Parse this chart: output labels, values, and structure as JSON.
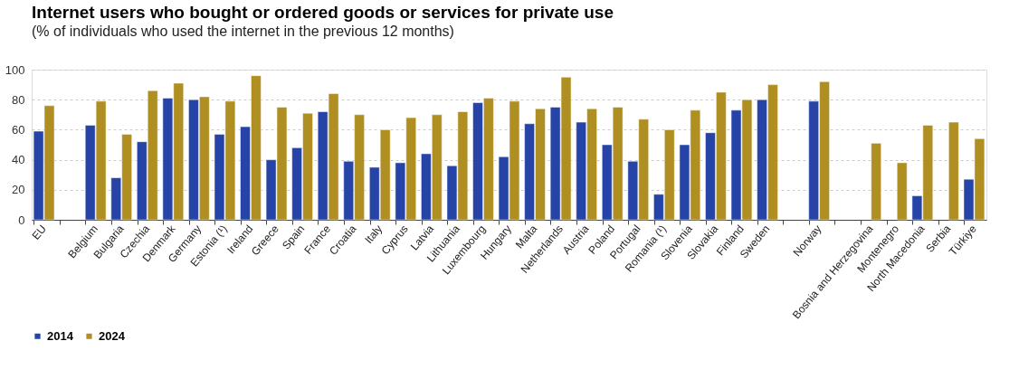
{
  "chart_data": {
    "type": "bar",
    "title": "Internet users who bought or ordered goods or services for private use",
    "subtitle": "(% of individuals who used the internet in the previous 12 months)",
    "categories": [
      "EU",
      null,
      "Belgium",
      "Bulgaria",
      "Czechia",
      "Denmark",
      "Germany",
      "Estonia (¹)",
      "Ireland",
      "Greece",
      "Spain",
      "France",
      "Croatia",
      "Italy",
      "Cyprus",
      "Latvia",
      "Lithuania",
      "Luxembourg",
      "Hungary",
      "Malta",
      "Netherlands",
      "Austria",
      "Poland",
      "Portugal",
      "Romania (¹)",
      "Slovenia",
      "Slovakia",
      "Finland",
      "Sweden",
      null,
      "Norway",
      null,
      "Bosnia and Herzegovina",
      "Montenegro",
      "North Macedonia",
      "Serbia",
      "Türkiye"
    ],
    "series": [
      {
        "name": "2014",
        "color": "#2644a8",
        "values": [
          59,
          null,
          63,
          28,
          52,
          81,
          80,
          57,
          62,
          40,
          48,
          72,
          39,
          35,
          38,
          44,
          36,
          78,
          42,
          64,
          75,
          65,
          50,
          39,
          17,
          50,
          58,
          73,
          80,
          null,
          79,
          null,
          null,
          null,
          16,
          null,
          27
        ]
      },
      {
        "name": "2024",
        "color": "#b08f22",
        "values": [
          76,
          null,
          79,
          57,
          86,
          91,
          82,
          79,
          96,
          75,
          71,
          84,
          70,
          60,
          68,
          70,
          72,
          81,
          79,
          74,
          95,
          74,
          75,
          67,
          60,
          73,
          85,
          80,
          90,
          null,
          92,
          null,
          51,
          38,
          63,
          65,
          54
        ]
      }
    ],
    "ylim": [
      0,
      100
    ],
    "yticks": [
      0,
      20,
      40,
      60,
      80,
      100
    ],
    "grid": "y",
    "legend": "bottom"
  }
}
